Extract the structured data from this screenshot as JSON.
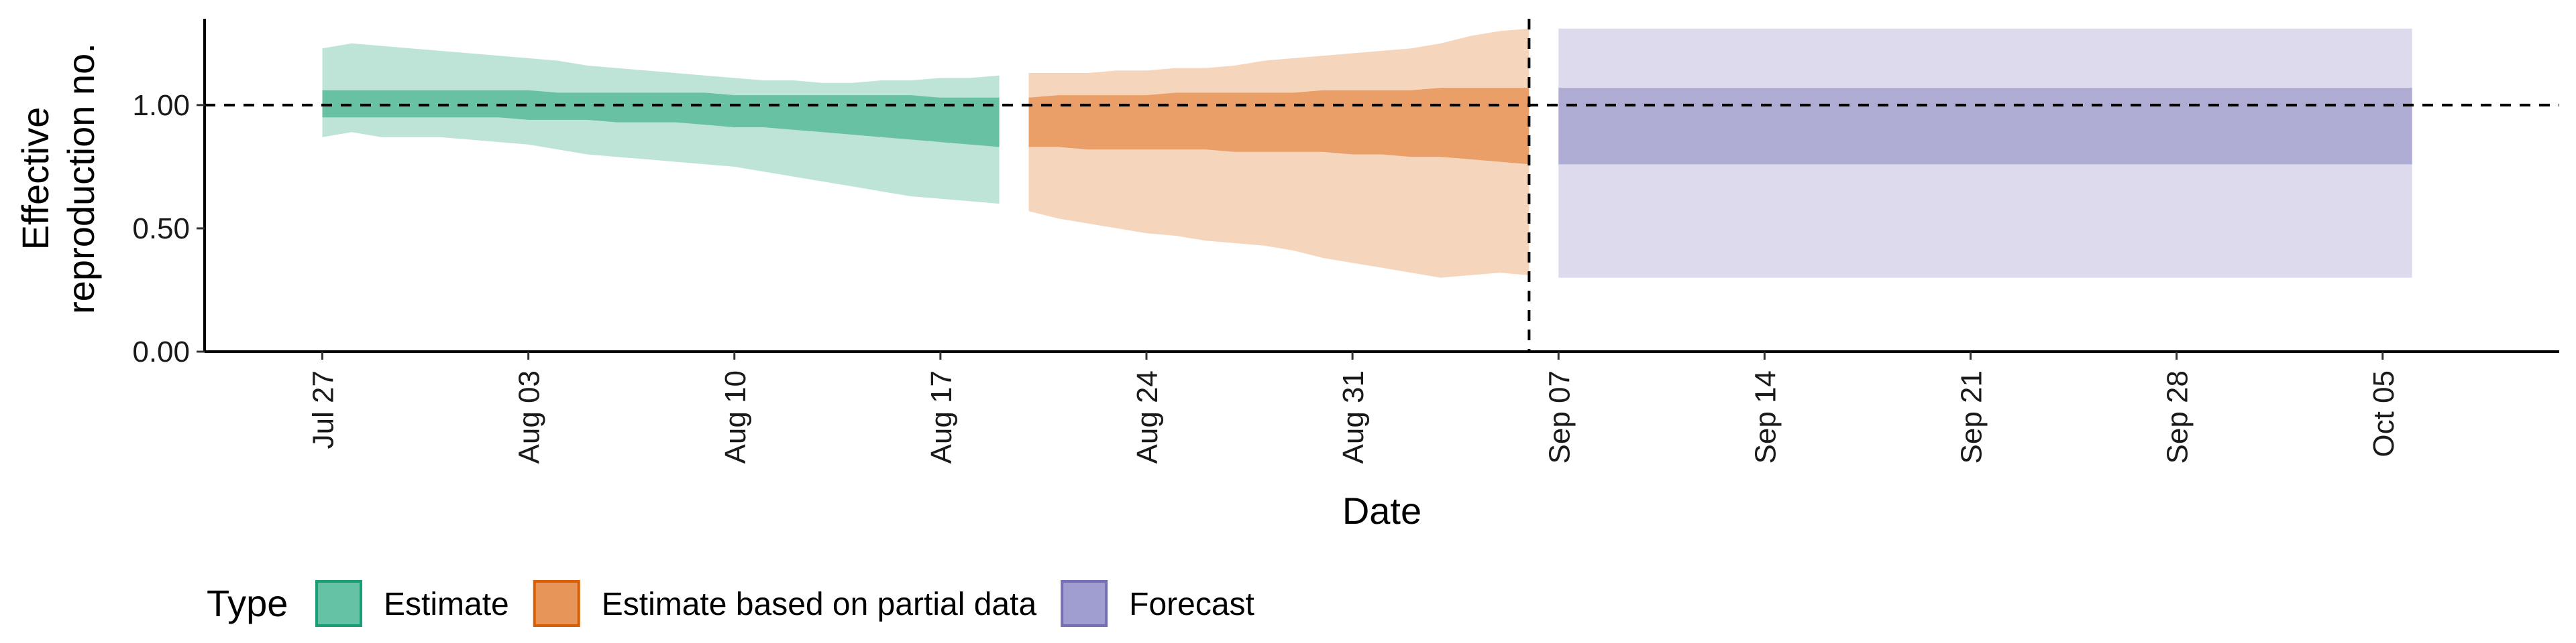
{
  "chart_data": {
    "type": "area",
    "xlabel": "Date",
    "ylabel_lines": [
      "Effective",
      "reproduction no."
    ],
    "ylim": [
      0,
      1.35
    ],
    "xlim": [
      "2020-07-23",
      "2020-10-11"
    ],
    "x_ticks": [
      {
        "date": "2020-07-27",
        "label": "Jul 27"
      },
      {
        "date": "2020-08-03",
        "label": "Aug 03"
      },
      {
        "date": "2020-08-10",
        "label": "Aug 10"
      },
      {
        "date": "2020-08-17",
        "label": "Aug 17"
      },
      {
        "date": "2020-08-24",
        "label": "Aug 24"
      },
      {
        "date": "2020-08-31",
        "label": "Aug 31"
      },
      {
        "date": "2020-09-07",
        "label": "Sep 07"
      },
      {
        "date": "2020-09-14",
        "label": "Sep 14"
      },
      {
        "date": "2020-09-21",
        "label": "Sep 21"
      },
      {
        "date": "2020-09-28",
        "label": "Sep 28"
      },
      {
        "date": "2020-10-05",
        "label": "Oct 05"
      }
    ],
    "y_ticks": [
      {
        "value": 0,
        "label": "0.00"
      },
      {
        "value": 0.5,
        "label": "0.50"
      },
      {
        "value": 1,
        "label": "1.00"
      },
      {
        "value": 1.5,
        "label": ""
      }
    ],
    "reference_hline": 1.0,
    "reference_vline": "2020-09-06",
    "grid": false,
    "legend": {
      "title": "Type",
      "placement": "bottom-left",
      "entries": [
        {
          "label": "Estimate",
          "fill": "#66c2a5",
          "stroke": "#1b9e77"
        },
        {
          "label": "Estimate based on partial data",
          "fill": "#e8955a",
          "stroke": "#d95f02"
        },
        {
          "label": "Forecast",
          "fill": "#a09dd0",
          "stroke": "#7570b3"
        }
      ]
    },
    "series": [
      {
        "name": "Estimate",
        "color": "#5bbb9b",
        "points": [
          {
            "date": "2020-07-27",
            "lower90": 0.87,
            "upper90": 1.23,
            "lower50": 0.95,
            "upper50": 1.06
          },
          {
            "date": "2020-07-28",
            "lower90": 0.89,
            "upper90": 1.25,
            "lower50": 0.95,
            "upper50": 1.06
          },
          {
            "date": "2020-07-29",
            "lower90": 0.87,
            "upper90": 1.24,
            "lower50": 0.95,
            "upper50": 1.06
          },
          {
            "date": "2020-07-30",
            "lower90": 0.87,
            "upper90": 1.23,
            "lower50": 0.95,
            "upper50": 1.06
          },
          {
            "date": "2020-07-31",
            "lower90": 0.87,
            "upper90": 1.22,
            "lower50": 0.95,
            "upper50": 1.06
          },
          {
            "date": "2020-08-01",
            "lower90": 0.86,
            "upper90": 1.21,
            "lower50": 0.95,
            "upper50": 1.06
          },
          {
            "date": "2020-08-02",
            "lower90": 0.85,
            "upper90": 1.2,
            "lower50": 0.95,
            "upper50": 1.06
          },
          {
            "date": "2020-08-03",
            "lower90": 0.84,
            "upper90": 1.19,
            "lower50": 0.94,
            "upper50": 1.06
          },
          {
            "date": "2020-08-04",
            "lower90": 0.82,
            "upper90": 1.18,
            "lower50": 0.94,
            "upper50": 1.05
          },
          {
            "date": "2020-08-05",
            "lower90": 0.8,
            "upper90": 1.16,
            "lower50": 0.94,
            "upper50": 1.05
          },
          {
            "date": "2020-08-06",
            "lower90": 0.79,
            "upper90": 1.15,
            "lower50": 0.93,
            "upper50": 1.05
          },
          {
            "date": "2020-08-07",
            "lower90": 0.78,
            "upper90": 1.14,
            "lower50": 0.93,
            "upper50": 1.05
          },
          {
            "date": "2020-08-08",
            "lower90": 0.77,
            "upper90": 1.13,
            "lower50": 0.93,
            "upper50": 1.05
          },
          {
            "date": "2020-08-09",
            "lower90": 0.76,
            "upper90": 1.12,
            "lower50": 0.92,
            "upper50": 1.05
          },
          {
            "date": "2020-08-10",
            "lower90": 0.75,
            "upper90": 1.11,
            "lower50": 0.91,
            "upper50": 1.04
          },
          {
            "date": "2020-08-11",
            "lower90": 0.73,
            "upper90": 1.1,
            "lower50": 0.91,
            "upper50": 1.04
          },
          {
            "date": "2020-08-12",
            "lower90": 0.71,
            "upper90": 1.1,
            "lower50": 0.9,
            "upper50": 1.04
          },
          {
            "date": "2020-08-13",
            "lower90": 0.69,
            "upper90": 1.09,
            "lower50": 0.89,
            "upper50": 1.04
          },
          {
            "date": "2020-08-14",
            "lower90": 0.67,
            "upper90": 1.09,
            "lower50": 0.88,
            "upper50": 1.04
          },
          {
            "date": "2020-08-15",
            "lower90": 0.65,
            "upper90": 1.1,
            "lower50": 0.87,
            "upper50": 1.04
          },
          {
            "date": "2020-08-16",
            "lower90": 0.63,
            "upper90": 1.1,
            "lower50": 0.86,
            "upper50": 1.04
          },
          {
            "date": "2020-08-17",
            "lower90": 0.62,
            "upper90": 1.11,
            "lower50": 0.85,
            "upper50": 1.03
          },
          {
            "date": "2020-08-18",
            "lower90": 0.61,
            "upper90": 1.11,
            "lower50": 0.84,
            "upper50": 1.03
          },
          {
            "date": "2020-08-19",
            "lower90": 0.6,
            "upper90": 1.12,
            "lower50": 0.83,
            "upper50": 1.03
          }
        ]
      },
      {
        "name": "Estimate based on partial data",
        "color": "#e8955a",
        "points": [
          {
            "date": "2020-08-20",
            "lower90": 0.57,
            "upper90": 1.13,
            "lower50": 0.83,
            "upper50": 1.03
          },
          {
            "date": "2020-08-21",
            "lower90": 0.54,
            "upper90": 1.13,
            "lower50": 0.83,
            "upper50": 1.04
          },
          {
            "date": "2020-08-22",
            "lower90": 0.52,
            "upper90": 1.13,
            "lower50": 0.82,
            "upper50": 1.04
          },
          {
            "date": "2020-08-23",
            "lower90": 0.5,
            "upper90": 1.14,
            "lower50": 0.82,
            "upper50": 1.04
          },
          {
            "date": "2020-08-24",
            "lower90": 0.48,
            "upper90": 1.14,
            "lower50": 0.82,
            "upper50": 1.04
          },
          {
            "date": "2020-08-25",
            "lower90": 0.47,
            "upper90": 1.15,
            "lower50": 0.82,
            "upper50": 1.05
          },
          {
            "date": "2020-08-26",
            "lower90": 0.45,
            "upper90": 1.15,
            "lower50": 0.82,
            "upper50": 1.05
          },
          {
            "date": "2020-08-27",
            "lower90": 0.44,
            "upper90": 1.16,
            "lower50": 0.81,
            "upper50": 1.05
          },
          {
            "date": "2020-08-28",
            "lower90": 0.43,
            "upper90": 1.18,
            "lower50": 0.81,
            "upper50": 1.05
          },
          {
            "date": "2020-08-29",
            "lower90": 0.41,
            "upper90": 1.19,
            "lower50": 0.81,
            "upper50": 1.05
          },
          {
            "date": "2020-08-30",
            "lower90": 0.38,
            "upper90": 1.2,
            "lower50": 0.81,
            "upper50": 1.06
          },
          {
            "date": "2020-08-31",
            "lower90": 0.36,
            "upper90": 1.21,
            "lower50": 0.8,
            "upper50": 1.06
          },
          {
            "date": "2020-09-01",
            "lower90": 0.34,
            "upper90": 1.22,
            "lower50": 0.8,
            "upper50": 1.06
          },
          {
            "date": "2020-09-02",
            "lower90": 0.32,
            "upper90": 1.23,
            "lower50": 0.79,
            "upper50": 1.06
          },
          {
            "date": "2020-09-03",
            "lower90": 0.3,
            "upper90": 1.25,
            "lower50": 0.79,
            "upper50": 1.07
          },
          {
            "date": "2020-09-04",
            "lower90": 0.31,
            "upper90": 1.28,
            "lower50": 0.78,
            "upper50": 1.07
          },
          {
            "date": "2020-09-05",
            "lower90": 0.32,
            "upper90": 1.3,
            "lower50": 0.77,
            "upper50": 1.07
          },
          {
            "date": "2020-09-06",
            "lower90": 0.31,
            "upper90": 1.31,
            "lower50": 0.76,
            "upper50": 1.07
          }
        ]
      },
      {
        "name": "Forecast",
        "color": "#a7a3cf",
        "points": [
          {
            "date": "2020-09-07",
            "lower90": 0.3,
            "upper90": 1.31,
            "lower50": 0.76,
            "upper50": 1.07
          },
          {
            "date": "2020-10-06",
            "lower90": 0.3,
            "upper90": 1.31,
            "lower50": 0.76,
            "upper50": 1.07
          }
        ]
      }
    ]
  }
}
